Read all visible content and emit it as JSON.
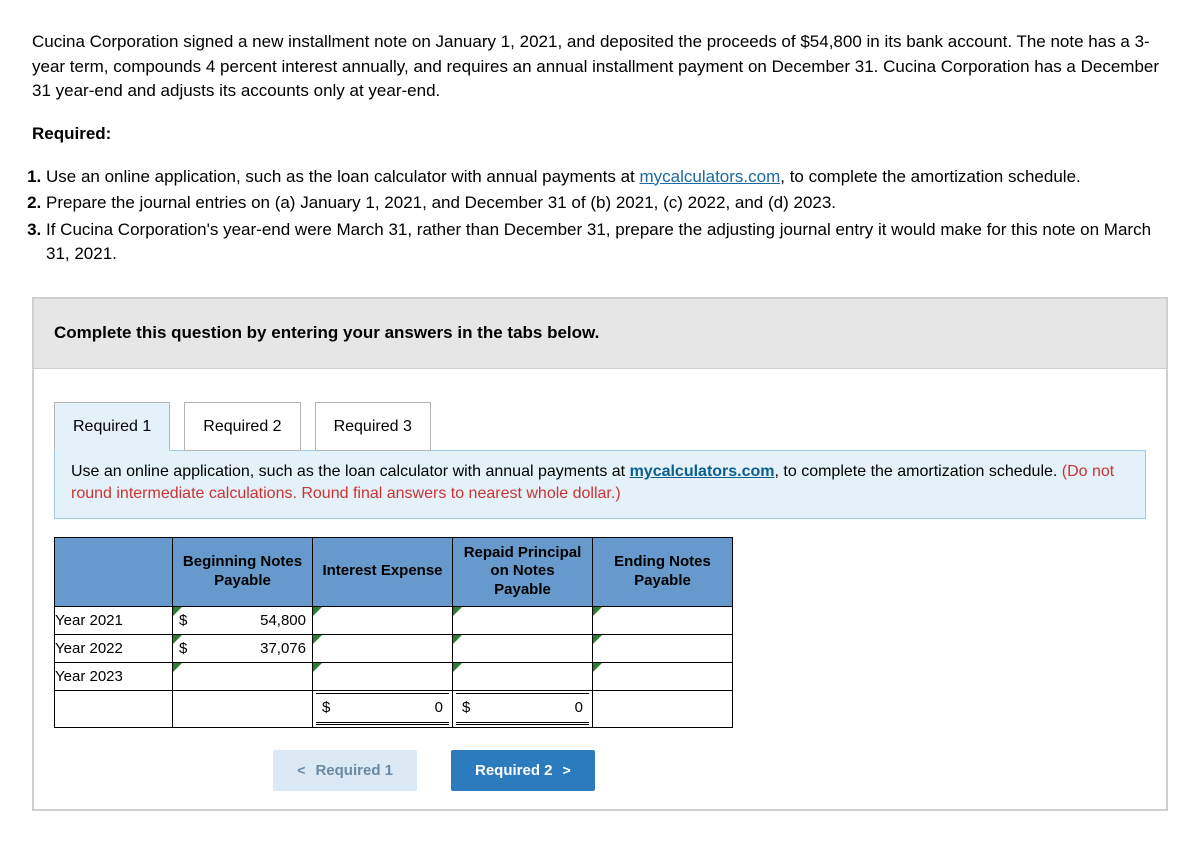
{
  "intro": {
    "paragraph": "Cucina Corporation signed a new installment note on January 1, 2021, and deposited the proceeds of $54,800 in its bank account. The note has a 3-year term, compounds 4 percent interest annually, and requires an annual installment payment on December 31. Cucina Corporation has a December 31 year-end and adjusts its accounts only at year-end."
  },
  "required_heading": "Required:",
  "requirements": {
    "r1_pre": "Use an online application, such as the loan calculator with annual payments at ",
    "r1_link": "mycalculators.com",
    "r1_post": ", to complete the amortization schedule.",
    "r2": "Prepare the journal entries on (a) January 1, 2021, and December 31 of (b) 2021, (c) 2022, and (d) 2023.",
    "r3": "If Cucina Corporation's year-end were March 31, rather than December 31, prepare the adjusting journal entry it would make for this note on March 31, 2021."
  },
  "banner": "Complete this question by entering your answers in the tabs below.",
  "tabs": {
    "t1": "Required 1",
    "t2": "Required 2",
    "t3": "Required 3"
  },
  "instruction": {
    "pre": "Use an online application, such as the loan calculator with annual payments at ",
    "link": "mycalculators.com",
    "mid": ", to complete the amortization schedule. ",
    "red": "(Do not round intermediate calculations. Round final answers to nearest whole dollar.)"
  },
  "table": {
    "headers": {
      "blank": "",
      "beginning": "Beginning Notes Payable",
      "interest": "Interest Expense",
      "repaid": "Repaid Principal on Notes Payable",
      "ending": "Ending Notes Payable"
    },
    "rows": [
      {
        "label": "Year 2021",
        "begin_sym": "$",
        "begin_val": "54,800"
      },
      {
        "label": "Year 2022",
        "begin_sym": "$",
        "begin_val": "37,076"
      },
      {
        "label": "Year 2023",
        "begin_sym": "",
        "begin_val": ""
      }
    ],
    "totals": {
      "interest_sym": "$",
      "interest_val": "0",
      "repaid_sym": "$",
      "repaid_val": "0"
    }
  },
  "nav": {
    "prev_chev": "<",
    "prev_label": "Required 1",
    "next_label": "Required 2",
    "next_chev": ">"
  },
  "colors": {
    "header_bg": "#6699cc",
    "panel_bg": "#e4f1f9",
    "banner_bg": "#e6e6e6",
    "flag": "#2e7d32",
    "link": "#1a6aa3",
    "red": "#cc3333",
    "btn_next": "#2d7bbf",
    "btn_prev": "#dbe9f5"
  }
}
